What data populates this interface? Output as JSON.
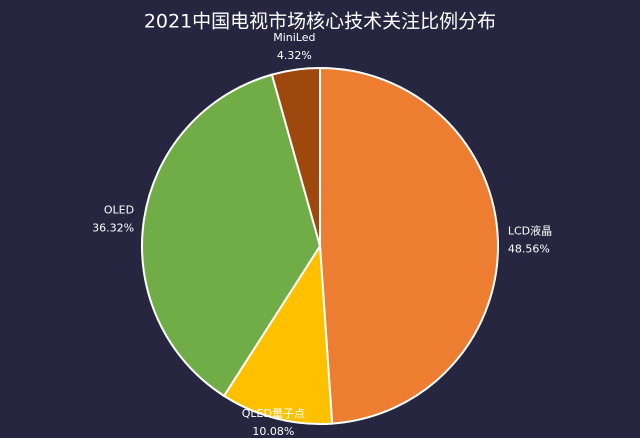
{
  "chart_data": {
    "type": "pie",
    "title": "2021中国电视市场核心技术关注比例分布",
    "categories": [
      "LCD液晶",
      "QLED量子点",
      "OLED",
      "MiniLed"
    ],
    "values": [
      48.56,
      10.08,
      36.32,
      4.32
    ],
    "value_labels": [
      "48.56%",
      "10.08%",
      "36.32%",
      "4.32%"
    ],
    "colors": [
      "#ed7d31",
      "#ffc000",
      "#70ad47",
      "#9e480e"
    ]
  }
}
